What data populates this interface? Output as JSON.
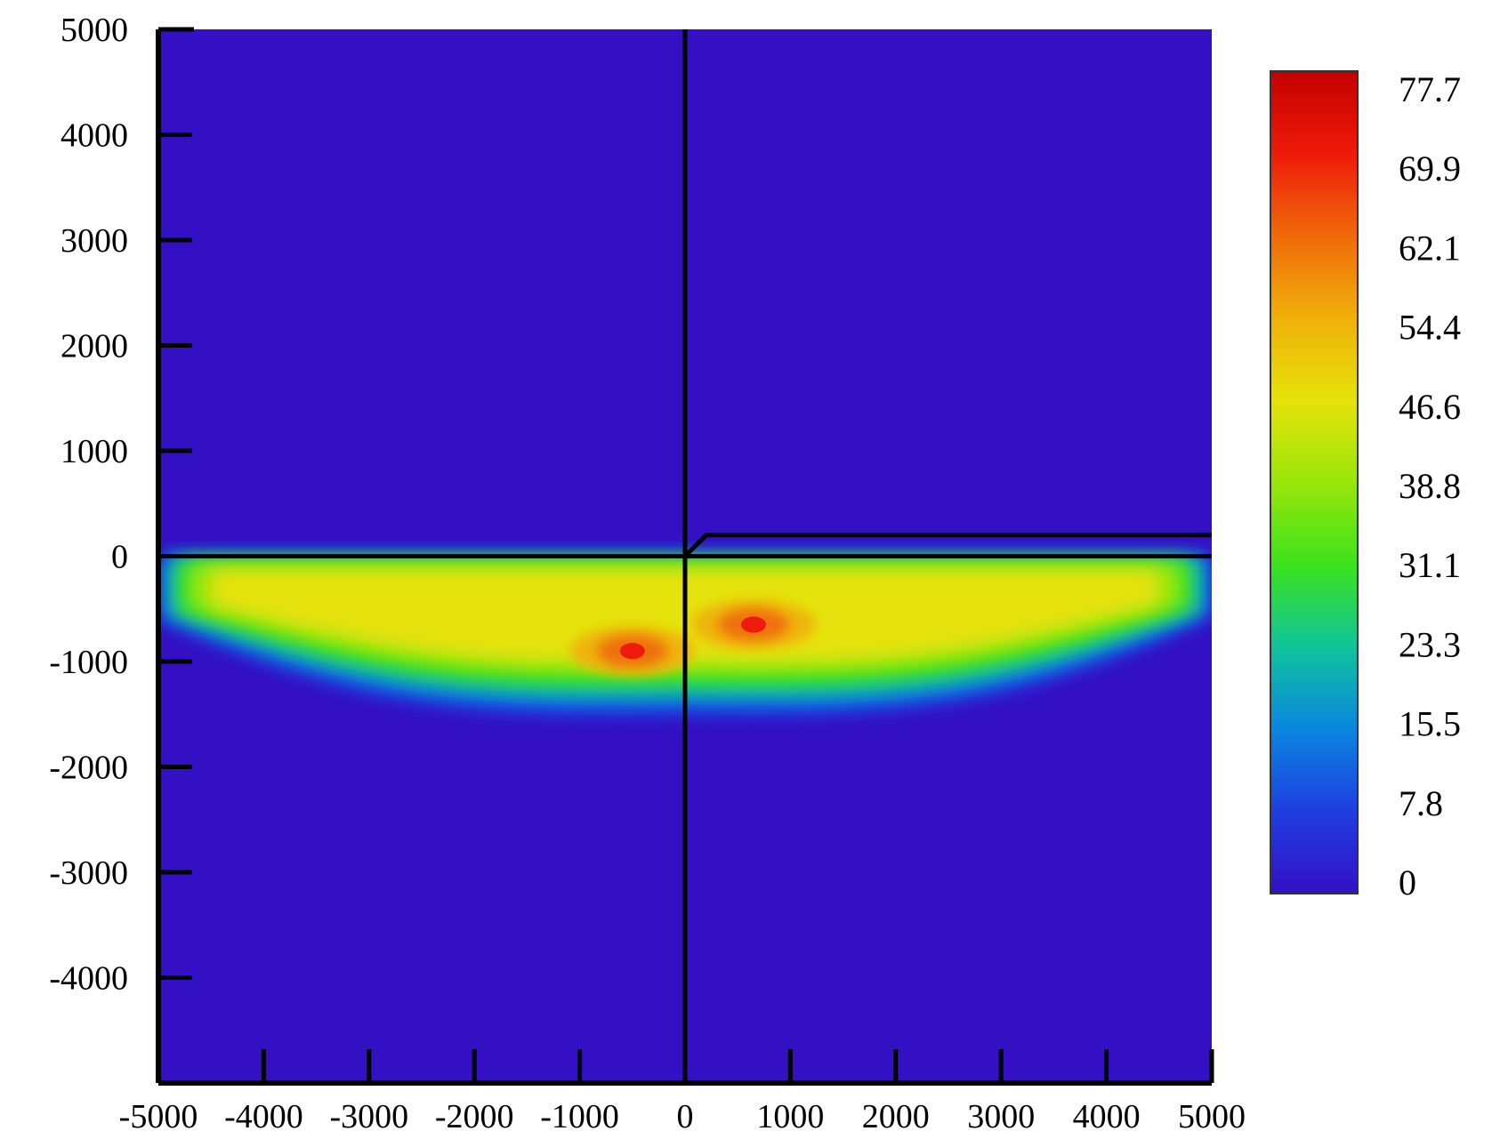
{
  "chart_data": {
    "type": "heatmap",
    "title": "",
    "xlabel": "",
    "ylabel": "",
    "xlim": [
      -5000,
      5000
    ],
    "ylim": [
      -5000,
      5000
    ],
    "x_ticks": [
      "-5000",
      "-4000",
      "-3000",
      "-2000",
      "-1000",
      "0",
      "1000",
      "2000",
      "3000",
      "4000",
      "5000"
    ],
    "y_ticks": [
      "5000",
      "4000",
      "3000",
      "2000",
      "1000",
      "0",
      "-1000",
      "-2000",
      "-3000",
      "-4000"
    ],
    "colorbar": {
      "min": 0,
      "max": 77.7,
      "labels": [
        "77.7",
        "69.9",
        "62.1",
        "54.4",
        "46.6",
        "38.8",
        "31.1",
        "23.3",
        "15.5",
        "7.8",
        "0"
      ],
      "colors": [
        "#3410c4",
        "#1f3ee0",
        "#0a86e0",
        "#10c49a",
        "#3ce21c",
        "#9ae60a",
        "#e6e20a",
        "#f0b00a",
        "#f06a0a",
        "#ee1a0a",
        "#c40000"
      ]
    },
    "background_value": 0,
    "band": {
      "description_values": {
        "x_range": [
          -5000,
          5000
        ],
        "y_top": 0,
        "y_bottom_at_center": -1500,
        "y_bottom_at_edges": -600,
        "peak_value": 77.7,
        "peak_locations": [
          [
            -500,
            -900
          ],
          [
            650,
            -650
          ]
        ]
      }
    },
    "boundary_lines": [
      {
        "name": "horizontal-axis-line",
        "points": [
          [
            -5000,
            0
          ],
          [
            5000,
            0
          ]
        ]
      },
      {
        "name": "vertical-axis-line",
        "points": [
          [
            0,
            5000
          ],
          [
            0,
            -5000
          ]
        ]
      },
      {
        "name": "step-line",
        "points": [
          [
            0,
            0
          ],
          [
            200,
            200
          ],
          [
            5000,
            200
          ]
        ]
      }
    ]
  }
}
